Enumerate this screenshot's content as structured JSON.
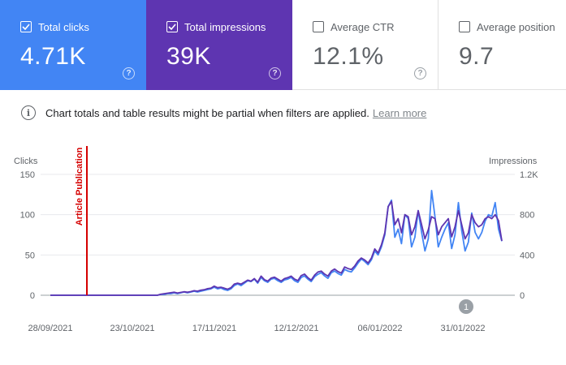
{
  "cards": [
    {
      "label": "Total clicks",
      "value": "4.71K",
      "checked": true
    },
    {
      "label": "Total impressions",
      "value": "39K",
      "checked": true
    },
    {
      "label": "Average CTR",
      "value": "12.1%",
      "checked": false
    },
    {
      "label": "Average position",
      "value": "9.7",
      "checked": false
    }
  ],
  "notice": {
    "text": "Chart totals and table results might be partial when filters are applied.",
    "link": "Learn more"
  },
  "colors": {
    "clicks": "#4285f4",
    "impressions": "#5e35b1",
    "annotation": "#d50000"
  },
  "chart_data": {
    "type": "line",
    "left_axis": {
      "title": "Clicks",
      "ticks": [
        "150",
        "100",
        "50",
        "0"
      ],
      "range": [
        0,
        150
      ]
    },
    "right_axis": {
      "title": "Impressions",
      "ticks": [
        "1.2K",
        "800",
        "400",
        "0"
      ],
      "range": [
        0,
        1200
      ]
    },
    "x_ticks": [
      "28/09/2021",
      "23/10/2021",
      "17/11/2021",
      "12/12/2021",
      "06/01/2022",
      "31/01/2022"
    ],
    "x_range": [
      "2021-09-28",
      "2022-02-15"
    ],
    "annotation": {
      "label": "Article Publication",
      "date": "2021-10-08"
    },
    "marker": {
      "label": "1",
      "date": "2022-02-05"
    },
    "series": [
      {
        "name": "Clicks",
        "axis": "left",
        "values": [
          0,
          0,
          0,
          0,
          0,
          0,
          0,
          0,
          0,
          0,
          0,
          0,
          0,
          0,
          0,
          0,
          0,
          0,
          0,
          0,
          0,
          0,
          0,
          0,
          0,
          0,
          0,
          0,
          0,
          0,
          0,
          0,
          0,
          1,
          1,
          2,
          2,
          3,
          2,
          3,
          4,
          3,
          4,
          5,
          4,
          5,
          6,
          7,
          8,
          10,
          8,
          9,
          7,
          6,
          8,
          12,
          14,
          12,
          15,
          18,
          17,
          20,
          15,
          22,
          18,
          16,
          20,
          21,
          18,
          16,
          19,
          20,
          22,
          18,
          16,
          22,
          24,
          20,
          17,
          23,
          26,
          28,
          24,
          21,
          28,
          30,
          27,
          25,
          32,
          30,
          29,
          34,
          40,
          45,
          42,
          38,
          44,
          55,
          50,
          60,
          75,
          110,
          118,
          72,
          82,
          64,
          100,
          95,
          60,
          72,
          105,
          78,
          55,
          70,
          130,
          98,
          60,
          72,
          82,
          90,
          58,
          75,
          115,
          80,
          55,
          66,
          102,
          78,
          70,
          78,
          92,
          100,
          98,
          115,
          82,
          67
        ]
      },
      {
        "name": "Impressions",
        "axis": "right",
        "values": [
          0,
          0,
          0,
          0,
          0,
          0,
          0,
          0,
          0,
          0,
          0,
          0,
          0,
          0,
          0,
          0,
          0,
          0,
          0,
          0,
          0,
          0,
          0,
          0,
          0,
          0,
          0,
          0,
          0,
          0,
          0,
          0,
          0,
          10,
          15,
          20,
          25,
          30,
          22,
          28,
          35,
          30,
          36,
          45,
          40,
          50,
          55,
          65,
          70,
          90,
          75,
          80,
          70,
          60,
          75,
          110,
          120,
          110,
          130,
          150,
          140,
          165,
          130,
          190,
          155,
          140,
          170,
          180,
          160,
          140,
          165,
          175,
          190,
          160,
          145,
          195,
          210,
          175,
          150,
          200,
          230,
          240,
          210,
          190,
          240,
          260,
          235,
          220,
          280,
          265,
          255,
          290,
          340,
          370,
          350,
          320,
          370,
          460,
          420,
          500,
          620,
          880,
          930,
          700,
          760,
          620,
          800,
          780,
          600,
          680,
          840,
          700,
          560,
          650,
          780,
          760,
          600,
          680,
          720,
          760,
          580,
          680,
          840,
          700,
          560,
          620,
          800,
          720,
          680,
          700,
          760,
          780,
          760,
          800,
          740,
          540
        ]
      }
    ]
  }
}
